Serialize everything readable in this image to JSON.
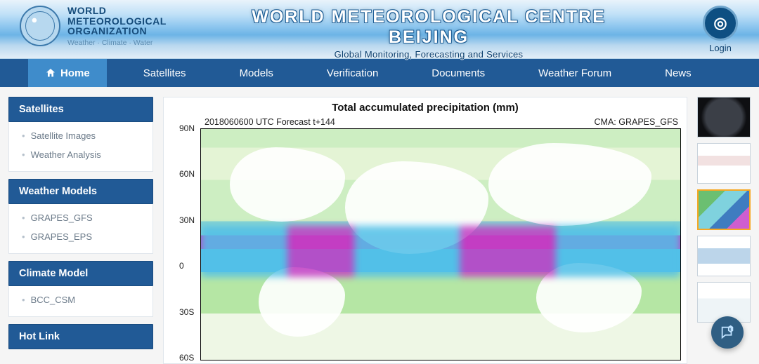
{
  "banner": {
    "wmo_name_line1": "WORLD",
    "wmo_name_line2": "METEOROLOGICAL",
    "wmo_name_line3": "ORGANIZATION",
    "wmo_tagline": "Weather · Climate · Water",
    "site_title": "WORLD METEOROLOGICAL CENTRE BEIJING",
    "site_subtitle": "Global Monitoring, Forecasting and Services",
    "login_label": "Login",
    "cma_glyph": "◎"
  },
  "nav": {
    "items": [
      {
        "label": "Home",
        "active": true,
        "icon": "home"
      },
      {
        "label": "Satellites",
        "active": false
      },
      {
        "label": "Models",
        "active": false
      },
      {
        "label": "Verification",
        "active": false
      },
      {
        "label": "Documents",
        "active": false
      },
      {
        "label": "Weather Forum",
        "active": false
      },
      {
        "label": "News",
        "active": false
      }
    ],
    "bar_color": "#215a96",
    "active_color": "#3f8ccb"
  },
  "sidebar": {
    "sections": [
      {
        "title": "Satellites",
        "items": [
          "Satellite Images",
          "Weather Analysis"
        ]
      },
      {
        "title": "Weather Models",
        "items": [
          "GRAPES_GFS",
          "GRAPES_EPS"
        ]
      },
      {
        "title": "Climate Model",
        "items": [
          "BCC_CSM"
        ]
      },
      {
        "title": "Hot Link",
        "items": []
      }
    ],
    "title_bg": "#215a96",
    "title_fg": "#ffffff"
  },
  "chart": {
    "title": "Total accumulated precipitation (mm)",
    "subtitle_left": "2018060600 UTC Forecast t+144",
    "subtitle_right": "CMA: GRAPES_GFS",
    "y_ticks": [
      "90N",
      "60N",
      "30N",
      "0",
      "30S",
      "60S"
    ],
    "palette": {
      "land_white": "#ffffff",
      "light_green": "#cdeec2",
      "green": "#6bbf71",
      "cyan": "#52c0e8",
      "blue": "#3f7cc0",
      "magenta": "#c33dc3"
    },
    "title_fontsize": 15,
    "label_fontsize": 12
  },
  "thumbs": {
    "items": [
      {
        "style": "dark",
        "selected": false
      },
      {
        "style": "pale",
        "selected": false
      },
      {
        "style": "map",
        "selected": true
      },
      {
        "style": "blue",
        "selected": false
      },
      {
        "style": "lite",
        "selected": false
      }
    ],
    "selected_border": "#f6a723"
  },
  "fab": {
    "name": "feedback-icon",
    "bg": "#2f5e83"
  }
}
